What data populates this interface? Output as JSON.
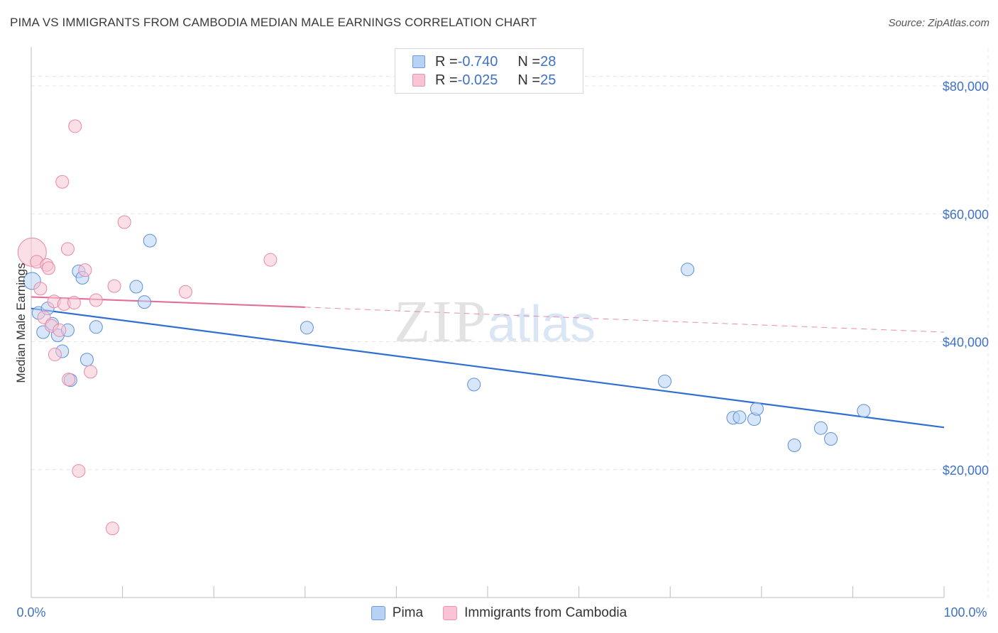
{
  "header": {
    "title": "PIMA VS IMMIGRANTS FROM CAMBODIA MEDIAN MALE EARNINGS CORRELATION CHART",
    "source": "Source: ZipAtlas.com"
  },
  "watermark": {
    "zip": "ZIP",
    "atlas": "atlas"
  },
  "legend": {
    "rows": [
      {
        "r_label": "R = ",
        "r_value": "-0.740",
        "n_label": "N = ",
        "n_value": "28"
      },
      {
        "r_label": "R = ",
        "r_value": "-0.025",
        "n_label": "N = ",
        "n_value": "25"
      }
    ]
  },
  "colors": {
    "pima_fill": "#b8d2f5",
    "pima_stroke": "#5b8fd9",
    "pima_line": "#2f6fd0",
    "camb_fill": "#f8c4d4",
    "camb_stroke": "#e888a8",
    "camb_line": "#e0709a",
    "tick_text": "#3f72c4",
    "grid": "#e4e4e4"
  },
  "chart_data": {
    "type": "scatter",
    "title": "PIMA VS IMMIGRANTS FROM CAMBODIA MEDIAN MALE EARNINGS CORRELATION CHART",
    "xlabel": "",
    "ylabel": "Median Male Earnings",
    "xlim": [
      0,
      100
    ],
    "ylim": [
      0,
      85000
    ],
    "x_tick_labels": [
      "0.0%",
      "100.0%"
    ],
    "y_ticks": [
      20000,
      40000,
      60000,
      80000
    ],
    "y_tick_labels": [
      "$20,000",
      "$40,000",
      "$60,000",
      "$80,000"
    ],
    "legend_position": "top-center",
    "series": [
      {
        "name": "Pima",
        "r": -0.74,
        "n": 28,
        "trend": {
          "x": [
            0,
            100
          ],
          "y": [
            45200,
            26600
          ]
        },
        "points": [
          {
            "x": 0.1,
            "y": 49500,
            "size": 12
          },
          {
            "x": 0.8,
            "y": 44500,
            "size": 9
          },
          {
            "x": 1.3,
            "y": 41500,
            "size": 9
          },
          {
            "x": 1.8,
            "y": 45200,
            "size": 9
          },
          {
            "x": 2.3,
            "y": 42800,
            "size": 9
          },
          {
            "x": 2.9,
            "y": 41000,
            "size": 9
          },
          {
            "x": 3.4,
            "y": 38500,
            "size": 9
          },
          {
            "x": 4.0,
            "y": 41800,
            "size": 9
          },
          {
            "x": 4.3,
            "y": 34000,
            "size": 9
          },
          {
            "x": 5.2,
            "y": 51000,
            "size": 9
          },
          {
            "x": 5.6,
            "y": 50000,
            "size": 9
          },
          {
            "x": 6.1,
            "y": 37200,
            "size": 9
          },
          {
            "x": 7.1,
            "y": 42300,
            "size": 9
          },
          {
            "x": 11.5,
            "y": 48600,
            "size": 9
          },
          {
            "x": 12.4,
            "y": 46200,
            "size": 9
          },
          {
            "x": 13.0,
            "y": 55800,
            "size": 9
          },
          {
            "x": 30.2,
            "y": 42200,
            "size": 9
          },
          {
            "x": 48.5,
            "y": 33300,
            "size": 9
          },
          {
            "x": 69.4,
            "y": 33800,
            "size": 9
          },
          {
            "x": 71.9,
            "y": 51300,
            "size": 9
          },
          {
            "x": 76.9,
            "y": 28100,
            "size": 9
          },
          {
            "x": 77.6,
            "y": 28200,
            "size": 9
          },
          {
            "x": 79.2,
            "y": 27900,
            "size": 9
          },
          {
            "x": 79.5,
            "y": 29500,
            "size": 9
          },
          {
            "x": 83.6,
            "y": 23800,
            "size": 9
          },
          {
            "x": 86.5,
            "y": 26500,
            "size": 9
          },
          {
            "x": 87.6,
            "y": 24800,
            "size": 9
          },
          {
            "x": 91.2,
            "y": 29200,
            "size": 9
          }
        ]
      },
      {
        "name": "Immigrants from Cambodia",
        "r": -0.025,
        "n": 25,
        "trend": {
          "x": [
            0,
            30
          ],
          "y": [
            47000,
            45400
          ]
        },
        "trend_ext": {
          "x": [
            30,
            100
          ],
          "y": [
            45400,
            41500
          ]
        },
        "points": [
          {
            "x": 0.1,
            "y": 54000,
            "size": 20
          },
          {
            "x": 0.6,
            "y": 52500,
            "size": 9
          },
          {
            "x": 1.0,
            "y": 48300,
            "size": 9
          },
          {
            "x": 1.4,
            "y": 43800,
            "size": 9
          },
          {
            "x": 1.7,
            "y": 52000,
            "size": 9
          },
          {
            "x": 1.9,
            "y": 51500,
            "size": 9
          },
          {
            "x": 2.2,
            "y": 42500,
            "size": 9
          },
          {
            "x": 2.5,
            "y": 46300,
            "size": 9
          },
          {
            "x": 2.6,
            "y": 38000,
            "size": 9
          },
          {
            "x": 3.1,
            "y": 41800,
            "size": 9
          },
          {
            "x": 3.4,
            "y": 65000,
            "size": 9
          },
          {
            "x": 3.6,
            "y": 45900,
            "size": 9
          },
          {
            "x": 4.0,
            "y": 54500,
            "size": 9
          },
          {
            "x": 4.1,
            "y": 34100,
            "size": 9
          },
          {
            "x": 4.7,
            "y": 46100,
            "size": 9
          },
          {
            "x": 4.8,
            "y": 73700,
            "size": 9
          },
          {
            "x": 5.2,
            "y": 19800,
            "size": 9
          },
          {
            "x": 5.9,
            "y": 51200,
            "size": 9
          },
          {
            "x": 6.5,
            "y": 35300,
            "size": 9
          },
          {
            "x": 7.1,
            "y": 46500,
            "size": 9
          },
          {
            "x": 8.9,
            "y": 10800,
            "size": 9
          },
          {
            "x": 9.1,
            "y": 48700,
            "size": 9
          },
          {
            "x": 10.2,
            "y": 58700,
            "size": 9
          },
          {
            "x": 16.9,
            "y": 47800,
            "size": 9
          },
          {
            "x": 26.2,
            "y": 52800,
            "size": 9
          }
        ]
      }
    ]
  }
}
